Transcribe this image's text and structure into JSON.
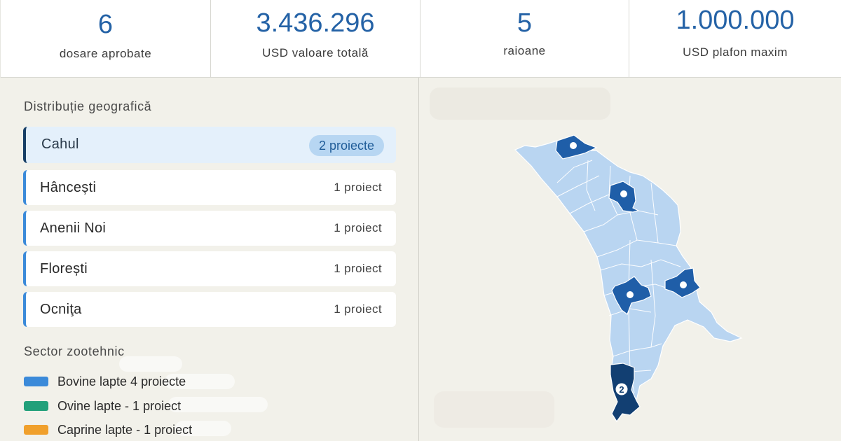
{
  "stats": [
    {
      "value": "6",
      "label": "dosare aprobate"
    },
    {
      "value": "3.436.296",
      "label": "USD valoare totală"
    },
    {
      "value": "5",
      "label": "raioane"
    },
    {
      "value": "1.000.000",
      "label": "USD plafon maxim"
    }
  ],
  "geo": {
    "title": "Distribuție geografică",
    "regions": [
      {
        "name": "Cahul",
        "count": "2 proiecte"
      },
      {
        "name": "Hâncești",
        "count": "1 proiect"
      },
      {
        "name": "Anenii Noi",
        "count": "1 proiect"
      },
      {
        "name": "Florești",
        "count": "1 proiect"
      },
      {
        "name": "Ocniţa",
        "count": "1 proiect"
      }
    ]
  },
  "sector": {
    "title": "Sector zootehnic",
    "items": [
      {
        "label": "Bovine lapte  4 proiecte",
        "color": "#3b8ad9"
      },
      {
        "label": "Ovine lapte - 1 proiect",
        "color": "#22a07a"
      },
      {
        "label": "Caprine lapte - 1 proiect",
        "color": "#f0a02c"
      }
    ]
  },
  "map": {
    "base_color": "#b9d5f1",
    "highlight_color": "#1f5ea8",
    "highlight_dark_color": "#123f72",
    "cahul_badge": "2"
  }
}
